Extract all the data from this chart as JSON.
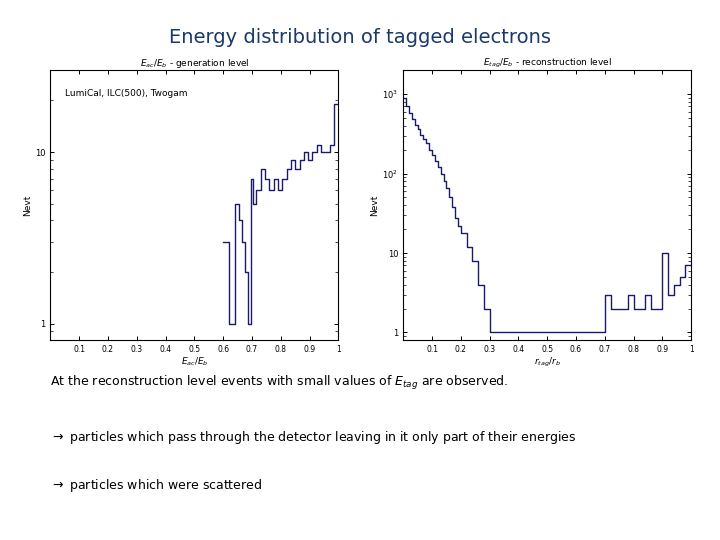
{
  "title": "Energy distribution of tagged electrons",
  "title_color": "#1a3a6b",
  "title_fontsize": 14,
  "title_fontweight": "normal",
  "background_color": "#ffffff",
  "left_plot": {
    "title": "$E_{ac}/E_b$ - generation level",
    "xlabel": "$E_{ac}/E_b$",
    "ylabel": "Nevt",
    "label": "LumiCal, ILC(500), Twogam",
    "xlim": [
      0.0,
      1.0
    ],
    "ylim_log": [
      0.8,
      30
    ],
    "xticks": [
      0.1,
      0.2,
      0.3,
      0.4,
      0.5,
      0.6,
      0.7,
      0.8,
      0.9,
      1.0
    ],
    "xtick_labels": [
      "0.1",
      "0.2",
      "0.3",
      "0.4",
      "0.5",
      "0.6",
      "0.7",
      "0.8",
      "0.9",
      "1"
    ],
    "yticks": [
      1,
      10
    ],
    "ytick_labels": [
      "1",
      "10"
    ],
    "bin_edges": [
      0.0,
      0.05,
      0.1,
      0.15,
      0.2,
      0.25,
      0.3,
      0.35,
      0.4,
      0.45,
      0.5,
      0.55,
      0.6,
      0.62,
      0.64,
      0.655,
      0.665,
      0.675,
      0.685,
      0.695,
      0.705,
      0.715,
      0.73,
      0.745,
      0.76,
      0.775,
      0.79,
      0.805,
      0.82,
      0.835,
      0.85,
      0.865,
      0.88,
      0.895,
      0.91,
      0.925,
      0.94,
      0.955,
      0.97,
      0.985,
      1.0
    ],
    "bin_values": [
      0,
      0,
      0,
      0,
      0,
      0,
      0,
      0,
      0,
      0,
      0,
      0,
      3,
      1,
      5,
      4,
      3,
      2,
      1,
      7,
      5,
      6,
      8,
      7,
      6,
      7,
      6,
      7,
      8,
      9,
      8,
      9,
      10,
      9,
      10,
      11,
      10,
      10,
      11,
      19
    ]
  },
  "right_plot": {
    "title": "$E_{tag}/E_b$ - reconstruction level",
    "xlabel": "$r_{tag}/r_b$",
    "ylabel": "Nevt",
    "xlim": [
      0.0,
      1.0
    ],
    "ylim_log": [
      0.8,
      2000
    ],
    "xticks": [
      0.1,
      0.2,
      0.3,
      0.4,
      0.5,
      0.6,
      0.7,
      0.8,
      0.9,
      1.0
    ],
    "xtick_labels": [
      "0.1",
      "0.2",
      "0.3",
      "0.4",
      "0.5",
      "0.6",
      "0.7",
      "0.8",
      "0.9",
      "1"
    ],
    "yticks": [
      1,
      10,
      100,
      1000
    ],
    "ytick_labels": [
      "1",
      "10",
      "$10^2$",
      "$10^3$"
    ],
    "bin_edges": [
      0.0,
      0.01,
      0.02,
      0.03,
      0.04,
      0.05,
      0.06,
      0.07,
      0.08,
      0.09,
      0.1,
      0.11,
      0.12,
      0.13,
      0.14,
      0.15,
      0.16,
      0.17,
      0.18,
      0.19,
      0.2,
      0.22,
      0.24,
      0.26,
      0.28,
      0.3,
      0.35,
      0.4,
      0.45,
      0.5,
      0.55,
      0.6,
      0.62,
      0.64,
      0.66,
      0.68,
      0.7,
      0.72,
      0.74,
      0.76,
      0.78,
      0.8,
      0.82,
      0.84,
      0.86,
      0.88,
      0.9,
      0.92,
      0.94,
      0.96,
      0.98,
      1.0
    ],
    "bin_values": [
      900,
      700,
      580,
      480,
      410,
      360,
      310,
      270,
      240,
      200,
      170,
      145,
      120,
      100,
      80,
      65,
      50,
      38,
      28,
      22,
      18,
      12,
      8,
      4,
      2,
      1,
      1,
      1,
      1,
      1,
      1,
      1,
      1,
      1,
      1,
      1,
      3,
      2,
      2,
      2,
      3,
      2,
      2,
      3,
      2,
      2,
      10,
      3,
      4,
      5,
      7
    ]
  },
  "text_lines": [
    "At the reconstruction level events with small values of $E_{tag}$ are observed.",
    "$\\rightarrow$ particles which pass through the detector leaving in it only part of their energies",
    "$\\rightarrow$ particles which were scattered"
  ],
  "hist_color": "#1a1a6b",
  "hist_linewidth": 1.0
}
